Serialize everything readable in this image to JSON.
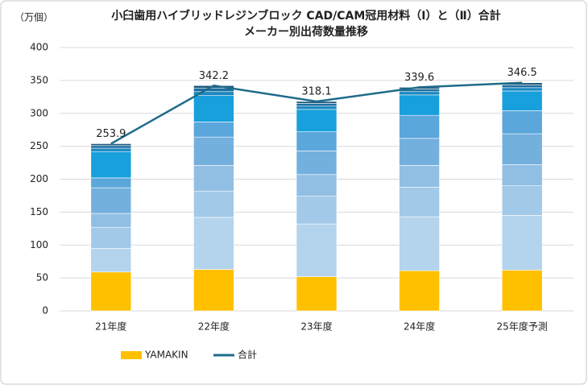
{
  "chart_data": {
    "type": "bar",
    "title": "小臼歯用ハイブリッドレジンブロック  CAD/CAM冠用材料（Ⅰ）と（Ⅱ）合計",
    "subtitle": "メーカー別出荷数量推移",
    "y_label": "（万個）",
    "categories": [
      "21年度",
      "22年度",
      "23年度",
      "24年度",
      "25年度予測"
    ],
    "series": [
      {
        "name": "YAMAKIN",
        "color": "#ffc000",
        "values": [
          59,
          63,
          52,
          61,
          62
        ]
      },
      {
        "color": "#b4d3ec",
        "values": [
          36,
          79,
          80,
          82,
          83
        ]
      },
      {
        "color": "#a3c9e8",
        "values": [
          32,
          40,
          42,
          45,
          45
        ]
      },
      {
        "color": "#91bfe4",
        "values": [
          21,
          39,
          33,
          33,
          32
        ]
      },
      {
        "color": "#74b0de",
        "values": [
          39,
          43,
          36,
          41,
          47
        ]
      },
      {
        "color": "#5ba6db",
        "values": [
          15,
          23,
          29,
          35,
          35
        ]
      },
      {
        "color": "#17a0dc",
        "values": [
          40,
          40,
          34,
          31,
          30
        ]
      },
      {
        "color": "#1a88c0",
        "values": [
          5,
          6,
          5,
          5,
          5
        ]
      },
      {
        "color": "#1d6fa0",
        "values": [
          4,
          5,
          4,
          4,
          4
        ]
      },
      {
        "color": "#205a80",
        "values": [
          2.9,
          4.2,
          3.1,
          2.6,
          3.5
        ]
      },
      {
        "name": "合計",
        "type": "line",
        "color": "#1f6b8a",
        "values": [
          253.9,
          342.2,
          318.1,
          339.6,
          346.5
        ]
      }
    ],
    "ylim": [
      0,
      400
    ],
    "yticks": [
      0,
      50,
      100,
      150,
      200,
      250,
      300,
      350,
      400
    ],
    "grid": true
  }
}
